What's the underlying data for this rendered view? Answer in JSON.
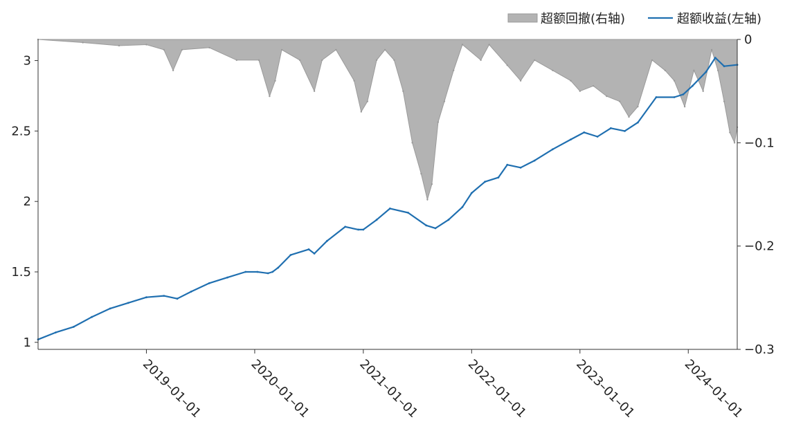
{
  "chart_data": {
    "type": "line",
    "legend": {
      "placement": "top-right",
      "entries": [
        {
          "key": "drawdown",
          "label": "超额回撤(右轴)",
          "marker": "area",
          "color": "#b3b3b3"
        },
        {
          "key": "excess_return",
          "label": "超额收益(左轴)",
          "marker": "line",
          "color": "#1f6fb0"
        }
      ]
    },
    "left_axis": {
      "ylim": [
        0.95,
        3.15
      ],
      "ticks": [
        1,
        1.5,
        2,
        2.5,
        3
      ],
      "tick_labels": [
        "1",
        "1.5",
        "2",
        "2.5",
        "3"
      ]
    },
    "right_axis": {
      "ylim": [
        -0.3,
        0
      ],
      "ticks": [
        0,
        -0.1,
        -0.2,
        -0.3
      ],
      "tick_labels": [
        "0",
        "−0.1",
        "−0.2",
        "−0.3"
      ]
    },
    "x_axis": {
      "range": [
        "2018-01-01",
        "2024-06-14"
      ],
      "ticks": [
        "2019-01-01",
        "2020-01-01",
        "2021-01-01",
        "2022-01-01",
        "2023-01-01",
        "2024-01-01"
      ],
      "tick_labels": [
        "2019–01–01",
        "2020–01–01",
        "2021–01–01",
        "2022–01–01",
        "2023–01–01",
        "2024–01–01"
      ]
    },
    "grid": false,
    "series": [
      {
        "name": "超额收益(左轴)",
        "axis": "left",
        "color": "#1f6fb0",
        "points": [
          [
            "2018-01-01",
            1.02
          ],
          [
            "2018-03-01",
            1.07
          ],
          [
            "2018-05-01",
            1.11
          ],
          [
            "2018-07-01",
            1.18
          ],
          [
            "2018-09-01",
            1.24
          ],
          [
            "2018-11-01",
            1.28
          ],
          [
            "2019-01-01",
            1.32
          ],
          [
            "2019-03-01",
            1.33
          ],
          [
            "2019-04-15",
            1.31
          ],
          [
            "2019-06-01",
            1.36
          ],
          [
            "2019-08-01",
            1.42
          ],
          [
            "2019-10-01",
            1.46
          ],
          [
            "2019-12-01",
            1.5
          ],
          [
            "2020-01-10",
            1.5
          ],
          [
            "2020-02-15",
            1.49
          ],
          [
            "2020-03-01",
            1.5
          ],
          [
            "2020-03-20",
            1.53
          ],
          [
            "2020-05-01",
            1.62
          ],
          [
            "2020-07-01",
            1.66
          ],
          [
            "2020-07-20",
            1.63
          ],
          [
            "2020-09-01",
            1.72
          ],
          [
            "2020-11-01",
            1.82
          ],
          [
            "2020-12-15",
            1.8
          ],
          [
            "2021-01-01",
            1.8
          ],
          [
            "2021-02-15",
            1.87
          ],
          [
            "2021-04-01",
            1.95
          ],
          [
            "2021-06-01",
            1.92
          ],
          [
            "2021-08-01",
            1.83
          ],
          [
            "2021-09-01",
            1.81
          ],
          [
            "2021-10-15",
            1.87
          ],
          [
            "2021-12-01",
            1.96
          ],
          [
            "2022-01-01",
            2.06
          ],
          [
            "2022-02-15",
            2.14
          ],
          [
            "2022-04-01",
            2.17
          ],
          [
            "2022-05-01",
            2.26
          ],
          [
            "2022-06-15",
            2.24
          ],
          [
            "2022-08-01",
            2.29
          ],
          [
            "2022-10-01",
            2.37
          ],
          [
            "2022-12-01",
            2.44
          ],
          [
            "2023-01-15",
            2.49
          ],
          [
            "2023-03-01",
            2.46
          ],
          [
            "2023-04-15",
            2.52
          ],
          [
            "2023-06-01",
            2.5
          ],
          [
            "2023-07-15",
            2.56
          ],
          [
            "2023-09-15",
            2.74
          ],
          [
            "2023-11-15",
            2.74
          ],
          [
            "2023-12-15",
            2.76
          ],
          [
            "2024-01-15",
            2.82
          ],
          [
            "2024-03-01",
            2.92
          ],
          [
            "2024-04-01",
            3.02
          ],
          [
            "2024-05-01",
            2.96
          ],
          [
            "2024-06-14",
            2.97
          ]
        ]
      },
      {
        "name": "超额回撤(右轴)",
        "axis": "right",
        "color": "#b3b3b3",
        "points": [
          [
            "2018-01-01",
            0
          ],
          [
            "2018-06-01",
            -0.003
          ],
          [
            "2018-10-01",
            -0.006
          ],
          [
            "2019-01-01",
            -0.005
          ],
          [
            "2019-03-01",
            -0.01
          ],
          [
            "2019-04-01",
            -0.03
          ],
          [
            "2019-05-01",
            -0.01
          ],
          [
            "2019-08-01",
            -0.008
          ],
          [
            "2019-11-01",
            -0.02
          ],
          [
            "2020-01-15",
            -0.02
          ],
          [
            "2020-02-20",
            -0.055
          ],
          [
            "2020-03-10",
            -0.04
          ],
          [
            "2020-04-01",
            -0.01
          ],
          [
            "2020-06-01",
            -0.02
          ],
          [
            "2020-07-20",
            -0.05
          ],
          [
            "2020-08-15",
            -0.02
          ],
          [
            "2020-10-01",
            -0.01
          ],
          [
            "2020-12-01",
            -0.04
          ],
          [
            "2020-12-25",
            -0.07
          ],
          [
            "2021-01-15",
            -0.06
          ],
          [
            "2021-02-15",
            -0.02
          ],
          [
            "2021-03-15",
            -0.01
          ],
          [
            "2021-04-15",
            -0.02
          ],
          [
            "2021-05-15",
            -0.05
          ],
          [
            "2021-06-15",
            -0.1
          ],
          [
            "2021-07-15",
            -0.13
          ],
          [
            "2021-08-05",
            -0.155
          ],
          [
            "2021-08-20",
            -0.14
          ],
          [
            "2021-09-10",
            -0.08
          ],
          [
            "2021-10-01",
            -0.06
          ],
          [
            "2021-11-01",
            -0.03
          ],
          [
            "2021-12-01",
            -0.005
          ],
          [
            "2022-02-01",
            -0.02
          ],
          [
            "2022-03-01",
            -0.005
          ],
          [
            "2022-05-01",
            -0.025
          ],
          [
            "2022-06-15",
            -0.04
          ],
          [
            "2022-08-01",
            -0.02
          ],
          [
            "2022-10-01",
            -0.03
          ],
          [
            "2022-12-01",
            -0.04
          ],
          [
            "2023-01-01",
            -0.05
          ],
          [
            "2023-02-15",
            -0.045
          ],
          [
            "2023-04-01",
            -0.055
          ],
          [
            "2023-05-15",
            -0.06
          ],
          [
            "2023-06-15",
            -0.075
          ],
          [
            "2023-07-15",
            -0.065
          ],
          [
            "2023-09-01",
            -0.02
          ],
          [
            "2023-10-15",
            -0.03
          ],
          [
            "2023-11-15",
            -0.04
          ],
          [
            "2023-12-20",
            -0.065
          ],
          [
            "2024-01-20",
            -0.03
          ],
          [
            "2024-02-20",
            -0.05
          ],
          [
            "2024-03-20",
            -0.01
          ],
          [
            "2024-04-10",
            -0.03
          ],
          [
            "2024-05-01",
            -0.06
          ],
          [
            "2024-05-20",
            -0.09
          ],
          [
            "2024-06-05",
            -0.1
          ],
          [
            "2024-06-14",
            -0.085
          ]
        ]
      }
    ]
  }
}
